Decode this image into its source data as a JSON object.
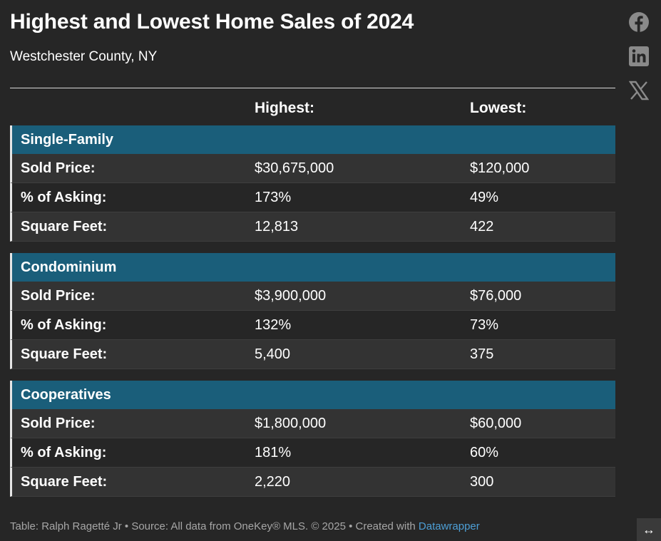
{
  "title": "Highest and Lowest Home Sales of 2024",
  "subtitle": "Westchester County, NY",
  "columns": {
    "highest": "Highest:",
    "lowest": "Lowest:"
  },
  "groups": [
    {
      "name": "Single-Family",
      "rows": [
        {
          "label": "Sold Price:",
          "highest": "$30,675,000",
          "lowest": "$120,000"
        },
        {
          "label": "% of Asking:",
          "highest": "173%",
          "lowest": "49%"
        },
        {
          "label": "Square Feet:",
          "highest": "12,813",
          "lowest": "422"
        }
      ]
    },
    {
      "name": "Condominium",
      "rows": [
        {
          "label": "Sold Price:",
          "highest": "$3,900,000",
          "lowest": "$76,000"
        },
        {
          "label": "% of Asking:",
          "highest": "132%",
          "lowest": "73%"
        },
        {
          "label": "Square Feet:",
          "highest": "5,400",
          "lowest": "375"
        }
      ]
    },
    {
      "name": "Cooperatives",
      "rows": [
        {
          "label": "Sold Price:",
          "highest": "$1,800,000",
          "lowest": "$60,000"
        },
        {
          "label": "% of Asking:",
          "highest": "181%",
          "lowest": "60%"
        },
        {
          "label": "Square Feet:",
          "highest": "2,220",
          "lowest": "300"
        }
      ]
    }
  ],
  "footer": {
    "text": "Table: Ralph Ragetté Jr • Source: All data from OneKey® MLS. © 2025  • Created with ",
    "link": "Datawrapper"
  },
  "social": {
    "facebook_icon": "facebook-icon",
    "linkedin_icon": "linkedin-icon",
    "x_icon": "x-icon"
  },
  "expand_icon": "↔",
  "colors": {
    "background": "#262626",
    "group_header": "#1a5e7a",
    "row_shaded": "#333333",
    "link": "#4d9fd6"
  }
}
